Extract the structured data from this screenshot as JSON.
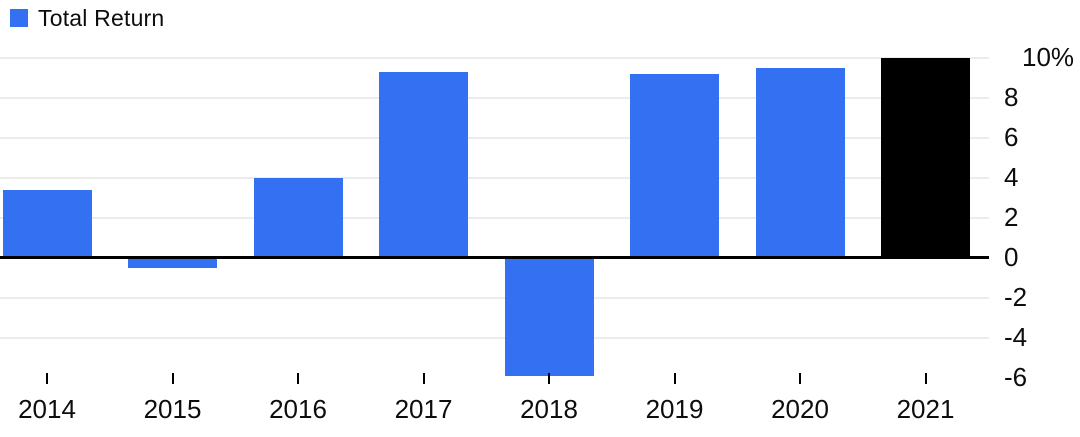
{
  "legend": {
    "label": "Total Return"
  },
  "colors": {
    "series_blue": "#3370f2",
    "highlight_black": "#000000",
    "gridline": "#ececec",
    "axis_line": "#000000",
    "text": "#0d0d0d",
    "background": "#ffffff"
  },
  "chart_data": {
    "type": "bar",
    "title": "",
    "xlabel": "",
    "ylabel": "",
    "categories": [
      "2014",
      "2015",
      "2016",
      "2017",
      "2018",
      "2019",
      "2020",
      "2021"
    ],
    "series": [
      {
        "name": "Total Return",
        "values": [
          3.4,
          -0.5,
          4.0,
          9.3,
          -5.9,
          9.2,
          9.5,
          10.0
        ]
      }
    ],
    "bar_colors": [
      "#3370f2",
      "#3370f2",
      "#3370f2",
      "#3370f2",
      "#3370f2",
      "#3370f2",
      "#3370f2",
      "#000000"
    ],
    "ylim": [
      -6,
      10
    ],
    "yticks": [
      {
        "value": 10,
        "label": "10%",
        "grid": true
      },
      {
        "value": 8,
        "label": "8",
        "grid": true
      },
      {
        "value": 6,
        "label": "6",
        "grid": true
      },
      {
        "value": 4,
        "label": "4",
        "grid": true
      },
      {
        "value": 2,
        "label": "2",
        "grid": true
      },
      {
        "value": 0,
        "label": "0",
        "grid": false
      },
      {
        "value": -2,
        "label": "-2",
        "grid": true
      },
      {
        "value": -4,
        "label": "-4",
        "grid": true
      },
      {
        "value": -6,
        "label": "-6",
        "grid": false
      }
    ],
    "grid": true,
    "legend_position": "top-left",
    "y_axis_side": "right"
  }
}
